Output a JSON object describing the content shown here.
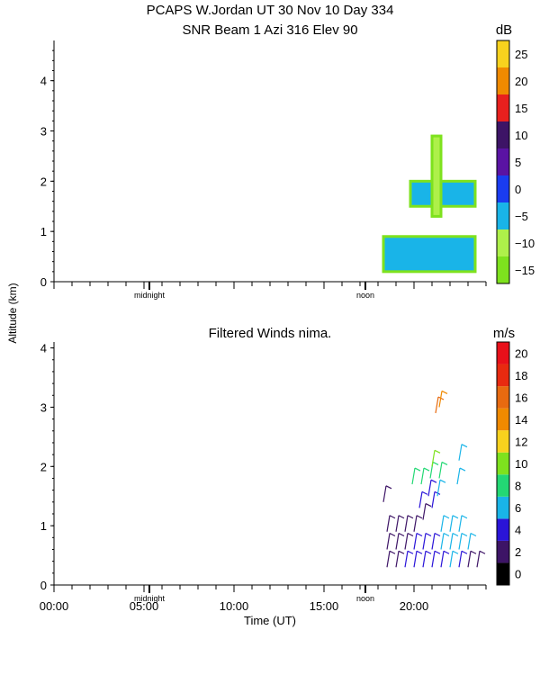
{
  "title_line1": "PCAPS W.Jordan UT  30 Nov 10 Day 334",
  "title_line2": "SNR Beam 1 Azi 316 Elev 90",
  "ylabel": "Altitude (km)",
  "xlabel": "Time (UT)",
  "markers": {
    "midnight": "midnight",
    "noon": "noon"
  },
  "chart_data": [
    {
      "type": "heatmap",
      "title": "SNR Beam 1 Azi 316 Elev 90",
      "ylim": [
        0,
        4.8
      ],
      "yticks": [
        "0",
        "1",
        "2",
        "3",
        "4"
      ],
      "xlim_hours": [
        0,
        24
      ],
      "colorbar": {
        "unit": "dB",
        "levels": [
          -15,
          -10,
          -5,
          0,
          5,
          10,
          15,
          20,
          25
        ],
        "tick_labels": [
          "−15",
          "−10",
          "−5",
          "0",
          "5",
          "10",
          "15",
          "20",
          "25"
        ],
        "colors": [
          "#7ee21e",
          "#aef04a",
          "#19b4e8",
          "#1a3cf0",
          "#5a13a3",
          "#3d1466",
          "#e8201e",
          "#f08a00",
          "#f8d21e"
        ]
      },
      "regions": [
        {
          "t0": 18.3,
          "t1": 23.4,
          "h0": 0.2,
          "h1": 0.9,
          "level": "-5"
        },
        {
          "t0": 19.8,
          "t1": 23.4,
          "h0": 1.5,
          "h1": 2.0,
          "level": "-5"
        },
        {
          "t0": 21.0,
          "t1": 21.5,
          "h0": 1.3,
          "h1": 2.9,
          "level": "-10"
        }
      ]
    },
    {
      "type": "scatter",
      "title": "Filtered Winds nima.",
      "ylim": [
        0,
        4.1
      ],
      "yticks": [
        "0",
        "1",
        "2",
        "3",
        "4"
      ],
      "xlim_hours": [
        0,
        24
      ],
      "xticks": [
        "00:00",
        "05:00",
        "10:00",
        "15:00",
        "20:00"
      ],
      "colorbar": {
        "unit": "m/s",
        "levels": [
          0,
          2,
          4,
          6,
          8,
          10,
          12,
          14,
          16,
          18,
          20
        ],
        "tick_labels": [
          "0",
          "2",
          "4",
          "6",
          "8",
          "10",
          "12",
          "14",
          "16",
          "18",
          "20"
        ],
        "colors": [
          "#000000",
          "#3d1466",
          "#2a14d8",
          "#19b4e8",
          "#23d874",
          "#7ee21e",
          "#f8d21e",
          "#f08a00",
          "#e86a10",
          "#e82a10",
          "#e8101a"
        ]
      },
      "barbs": [
        {
          "t": 18.5,
          "h": 0.3,
          "speed": 3
        },
        {
          "t": 18.5,
          "h": 0.6,
          "speed": 3
        },
        {
          "t": 18.5,
          "h": 0.9,
          "speed": 2
        },
        {
          "t": 19.0,
          "h": 0.3,
          "speed": 3
        },
        {
          "t": 19.0,
          "h": 0.6,
          "speed": 3
        },
        {
          "t": 19.0,
          "h": 0.9,
          "speed": 3
        },
        {
          "t": 19.5,
          "h": 0.3,
          "speed": 4
        },
        {
          "t": 19.5,
          "h": 0.6,
          "speed": 3
        },
        {
          "t": 19.5,
          "h": 0.9,
          "speed": 3
        },
        {
          "t": 20.0,
          "h": 0.3,
          "speed": 4
        },
        {
          "t": 20.0,
          "h": 0.6,
          "speed": 4
        },
        {
          "t": 20.0,
          "h": 0.9,
          "speed": 3
        },
        {
          "t": 20.5,
          "h": 0.3,
          "speed": 4
        },
        {
          "t": 20.5,
          "h": 0.6,
          "speed": 5
        },
        {
          "t": 20.5,
          "h": 1.1,
          "speed": 3
        },
        {
          "t": 21.0,
          "h": 0.3,
          "speed": 5
        },
        {
          "t": 21.0,
          "h": 0.6,
          "speed": 5
        },
        {
          "t": 21.0,
          "h": 1.3,
          "speed": 4
        },
        {
          "t": 21.5,
          "h": 0.3,
          "speed": 5
        },
        {
          "t": 21.5,
          "h": 0.6,
          "speed": 6
        },
        {
          "t": 21.5,
          "h": 0.9,
          "speed": 6
        },
        {
          "t": 22.0,
          "h": 0.3,
          "speed": 6
        },
        {
          "t": 22.0,
          "h": 0.6,
          "speed": 6
        },
        {
          "t": 22.0,
          "h": 0.9,
          "speed": 6
        },
        {
          "t": 22.5,
          "h": 0.3,
          "speed": 5
        },
        {
          "t": 22.5,
          "h": 0.6,
          "speed": 6
        },
        {
          "t": 22.5,
          "h": 0.9,
          "speed": 6
        },
        {
          "t": 23.0,
          "h": 0.3,
          "speed": 3
        },
        {
          "t": 23.0,
          "h": 0.6,
          "speed": 6
        },
        {
          "t": 23.5,
          "h": 0.3,
          "speed": 2
        },
        {
          "t": 18.3,
          "h": 1.4,
          "speed": 3
        },
        {
          "t": 20.3,
          "h": 1.3,
          "speed": 4
        },
        {
          "t": 20.8,
          "h": 1.5,
          "speed": 5
        },
        {
          "t": 21.3,
          "h": 1.5,
          "speed": 6
        },
        {
          "t": 19.9,
          "h": 1.7,
          "speed": 8
        },
        {
          "t": 20.4,
          "h": 1.7,
          "speed": 9
        },
        {
          "t": 20.9,
          "h": 1.8,
          "speed": 8
        },
        {
          "t": 21.4,
          "h": 1.8,
          "speed": 9
        },
        {
          "t": 22.4,
          "h": 1.7,
          "speed": 7
        },
        {
          "t": 21.0,
          "h": 2.0,
          "speed": 10
        },
        {
          "t": 22.5,
          "h": 2.1,
          "speed": 7
        },
        {
          "t": 21.2,
          "h": 2.9,
          "speed": 16
        },
        {
          "t": 21.4,
          "h": 3.0,
          "speed": 15
        }
      ]
    }
  ]
}
